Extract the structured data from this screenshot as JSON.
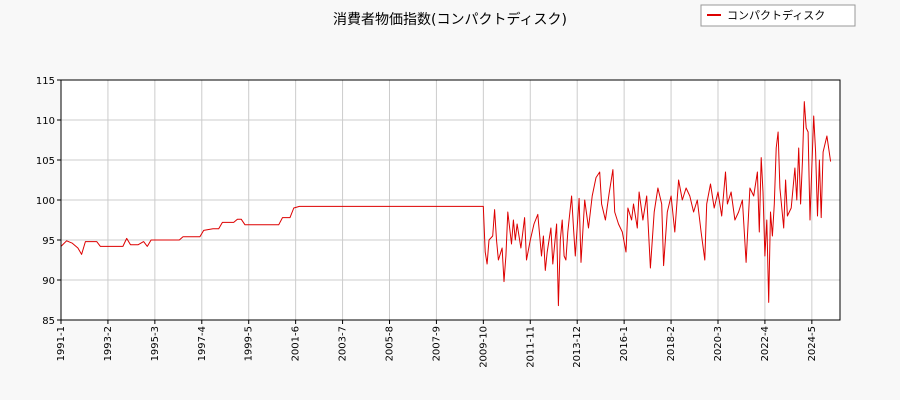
{
  "chart_data": {
    "type": "line",
    "title": "消費者物価指数(コンパクトディスク)",
    "xlabel": "",
    "ylabel": "",
    "ylim": [
      85,
      115
    ],
    "yticks": [
      85,
      90,
      95,
      100,
      105,
      110,
      115
    ],
    "xticks": [
      "1991-1",
      "1993-2",
      "1995-3",
      "1997-4",
      "1999-5",
      "2001-6",
      "2003-7",
      "2005-8",
      "2007-9",
      "2009-10",
      "2011-11",
      "2013-12",
      "2016-1",
      "2018-2",
      "2020-3",
      "2022-4",
      "2024-5"
    ],
    "x_range": [
      "1991-1",
      "2025-8"
    ],
    "grid": true,
    "legend_position": "top-right",
    "series": [
      {
        "name": "コンパクトディスク",
        "color": "#dd0000",
        "points": [
          [
            "1991-1",
            94.2
          ],
          [
            "1991-4",
            94.9
          ],
          [
            "1991-7",
            94.6
          ],
          [
            "1991-10",
            94.0
          ],
          [
            "1991-12",
            93.2
          ],
          [
            "1992-2",
            94.8
          ],
          [
            "1992-8",
            94.8
          ],
          [
            "1992-10",
            94.2
          ],
          [
            "1993-2",
            94.2
          ],
          [
            "1993-6",
            94.2
          ],
          [
            "1993-10",
            94.2
          ],
          [
            "1993-12",
            95.2
          ],
          [
            "1994-2",
            94.4
          ],
          [
            "1994-6",
            94.4
          ],
          [
            "1994-9",
            94.8
          ],
          [
            "1994-11",
            94.2
          ],
          [
            "1995-1",
            95.0
          ],
          [
            "1995-6",
            95.0
          ],
          [
            "1996-1",
            95.0
          ],
          [
            "1996-4",
            95.0
          ],
          [
            "1996-6",
            95.4
          ],
          [
            "1997-1",
            95.4
          ],
          [
            "1997-3",
            95.4
          ],
          [
            "1997-5",
            96.2
          ],
          [
            "1997-10",
            96.4
          ],
          [
            "1998-1",
            96.4
          ],
          [
            "1998-3",
            97.2
          ],
          [
            "1998-9",
            97.2
          ],
          [
            "1998-11",
            97.6
          ],
          [
            "1999-1",
            97.6
          ],
          [
            "1999-3",
            96.9
          ],
          [
            "1999-7",
            96.9
          ],
          [
            "2000-3",
            96.9
          ],
          [
            "2000-9",
            96.9
          ],
          [
            "2000-11",
            97.8
          ],
          [
            "2001-3",
            97.8
          ],
          [
            "2001-5",
            99.0
          ],
          [
            "2001-8",
            99.2
          ],
          [
            "2003-7",
            99.2
          ],
          [
            "2005-8",
            99.2
          ],
          [
            "2007-9",
            99.2
          ],
          [
            "2009-10",
            99.2
          ],
          [
            "2009-11",
            93.5
          ],
          [
            "2009-12",
            92.0
          ],
          [
            "2010-1",
            95.0
          ],
          [
            "2010-3",
            95.5
          ],
          [
            "2010-4",
            98.8
          ],
          [
            "2010-5",
            95.0
          ],
          [
            "2010-6",
            92.5
          ],
          [
            "2010-8",
            94.0
          ],
          [
            "2010-9",
            89.8
          ],
          [
            "2010-10",
            93.0
          ],
          [
            "2010-11",
            98.5
          ],
          [
            "2011-1",
            94.5
          ],
          [
            "2011-2",
            97.5
          ],
          [
            "2011-3",
            95.0
          ],
          [
            "2011-4",
            97.0
          ],
          [
            "2011-6",
            94.0
          ],
          [
            "2011-8",
            97.8
          ],
          [
            "2011-9",
            92.5
          ],
          [
            "2011-11",
            95.0
          ],
          [
            "2012-1",
            97.0
          ],
          [
            "2012-3",
            98.2
          ],
          [
            "2012-5",
            93.0
          ],
          [
            "2012-6",
            95.5
          ],
          [
            "2012-7",
            91.2
          ],
          [
            "2012-8",
            93.5
          ],
          [
            "2012-10",
            96.5
          ],
          [
            "2012-11",
            92.0
          ],
          [
            "2013-1",
            97.0
          ],
          [
            "2013-2",
            86.8
          ],
          [
            "2013-3",
            95.0
          ],
          [
            "2013-4",
            97.5
          ],
          [
            "2013-5",
            93.0
          ],
          [
            "2013-6",
            92.5
          ],
          [
            "2013-7",
            96.0
          ],
          [
            "2013-9",
            100.5
          ],
          [
            "2013-10",
            96.5
          ],
          [
            "2013-11",
            93.0
          ],
          [
            "2014-1",
            100.2
          ],
          [
            "2014-2",
            92.2
          ],
          [
            "2014-4",
            100.0
          ],
          [
            "2014-6",
            96.5
          ],
          [
            "2014-8",
            100.5
          ],
          [
            "2014-10",
            102.8
          ],
          [
            "2014-12",
            103.5
          ],
          [
            "2015-1",
            99.5
          ],
          [
            "2015-3",
            97.5
          ],
          [
            "2015-5",
            100.8
          ],
          [
            "2015-7",
            103.8
          ],
          [
            "2015-8",
            98.5
          ],
          [
            "2015-10",
            97.0
          ],
          [
            "2015-12",
            96.0
          ],
          [
            "2016-2",
            93.5
          ],
          [
            "2016-3",
            99.0
          ],
          [
            "2016-5",
            97.5
          ],
          [
            "2016-6",
            99.5
          ],
          [
            "2016-8",
            96.5
          ],
          [
            "2016-9",
            101.0
          ],
          [
            "2016-11",
            97.5
          ],
          [
            "2017-1",
            100.5
          ],
          [
            "2017-3",
            91.5
          ],
          [
            "2017-5",
            98.5
          ],
          [
            "2017-7",
            101.5
          ],
          [
            "2017-9",
            99.5
          ],
          [
            "2017-10",
            91.8
          ],
          [
            "2017-12",
            98.5
          ],
          [
            "2018-2",
            100.5
          ],
          [
            "2018-4",
            96.0
          ],
          [
            "2018-6",
            102.5
          ],
          [
            "2018-8",
            100.0
          ],
          [
            "2018-10",
            101.5
          ],
          [
            "2018-12",
            100.5
          ],
          [
            "2019-2",
            98.5
          ],
          [
            "2019-4",
            100.0
          ],
          [
            "2019-6",
            96.0
          ],
          [
            "2019-8",
            92.5
          ],
          [
            "2019-9",
            99.5
          ],
          [
            "2019-11",
            102.0
          ],
          [
            "2020-1",
            99.0
          ],
          [
            "2020-3",
            101.0
          ],
          [
            "2020-5",
            98.0
          ],
          [
            "2020-7",
            103.5
          ],
          [
            "2020-8",
            99.5
          ],
          [
            "2020-10",
            101.0
          ],
          [
            "2020-12",
            97.5
          ],
          [
            "2021-2",
            98.5
          ],
          [
            "2021-4",
            100.0
          ],
          [
            "2021-6",
            92.2
          ],
          [
            "2021-8",
            101.5
          ],
          [
            "2021-10",
            100.5
          ],
          [
            "2021-12",
            103.5
          ],
          [
            "2022-1",
            96.0
          ],
          [
            "2022-2",
            105.3
          ],
          [
            "2022-3",
            101.0
          ],
          [
            "2022-4",
            93.0
          ],
          [
            "2022-5",
            97.5
          ],
          [
            "2022-6",
            87.2
          ],
          [
            "2022-7",
            98.5
          ],
          [
            "2022-8",
            95.5
          ],
          [
            "2022-9",
            99.5
          ],
          [
            "2022-10",
            106.5
          ],
          [
            "2022-11",
            108.5
          ],
          [
            "2022-12",
            101.5
          ],
          [
            "2023-2",
            96.5
          ],
          [
            "2023-3",
            102.5
          ],
          [
            "2023-4",
            98.0
          ],
          [
            "2023-6",
            99.0
          ],
          [
            "2023-8",
            104.0
          ],
          [
            "2023-9",
            100.0
          ],
          [
            "2023-10",
            106.5
          ],
          [
            "2023-11",
            99.5
          ],
          [
            "2023-12",
            105.0
          ],
          [
            "2024-1",
            112.3
          ],
          [
            "2024-2",
            109.0
          ],
          [
            "2024-3",
            108.5
          ],
          [
            "2024-4",
            97.5
          ],
          [
            "2024-5",
            104.0
          ],
          [
            "2024-6",
            110.5
          ],
          [
            "2024-7",
            106.0
          ],
          [
            "2024-8",
            98.0
          ],
          [
            "2024-9",
            105.0
          ],
          [
            "2024-10",
            97.8
          ],
          [
            "2024-11",
            106.0
          ],
          [
            "2025-1",
            108.0
          ],
          [
            "2025-3",
            104.8
          ]
        ]
      }
    ]
  }
}
